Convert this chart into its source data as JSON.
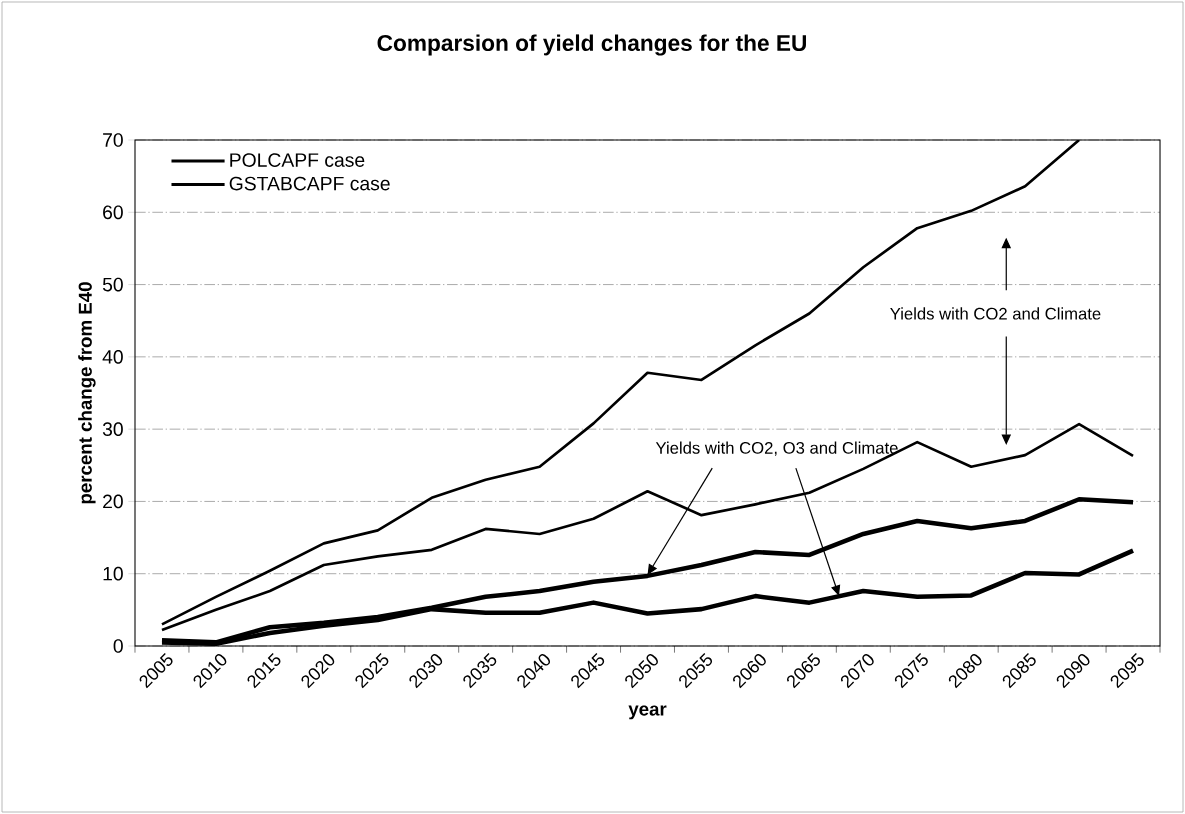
{
  "chart_data": {
    "type": "line",
    "title": "Comparsion of yield changes for the EU",
    "xlabel": "year",
    "ylabel": "percent change from E40",
    "categories": [
      "2005",
      "2010",
      "2015",
      "2020",
      "2025",
      "2030",
      "2035",
      "2040",
      "2045",
      "2050",
      "2055",
      "2060",
      "2065",
      "2070",
      "2075",
      "2080",
      "2085",
      "2090",
      "2095"
    ],
    "series": [
      {
        "name": "POLCAPF case",
        "color": "#000000",
        "values": [
          3.0,
          6.8,
          10.4,
          14.2,
          16.0,
          20.5,
          23.0,
          24.8,
          30.8,
          37.8,
          36.8,
          41.6,
          46.0,
          52.4,
          57.8,
          60.2,
          63.6,
          70,
          null
        ]
      },
      {
        "name": "GSTABCAPF case",
        "color": "#000000",
        "values": [
          2.2,
          5.0,
          7.6,
          11.2,
          12.4,
          13.3,
          16.2,
          15.5,
          17.6,
          21.4,
          18.1,
          19.6,
          21.2,
          24.5,
          28.2,
          24.8,
          26.4,
          30.7,
          26.3
        ]
      },
      {
        "color": "#000000",
        "values": [
          0.8,
          0.5,
          2.6,
          3.2,
          4.0,
          5.3,
          6.8,
          7.6,
          8.9,
          9.7,
          11.2,
          13.0,
          12.6,
          15.5,
          17.3,
          16.3,
          17.3,
          20.3,
          19.9
        ]
      },
      {
        "color": "#000000",
        "values": [
          0.5,
          0.3,
          1.8,
          2.8,
          3.6,
          5.1,
          4.6,
          4.6,
          6.0,
          4.5,
          5.1,
          6.9,
          6.0,
          7.6,
          6.8,
          7.0,
          10.1,
          9.9,
          13.2
        ]
      }
    ],
    "ylim": [
      0,
      70
    ],
    "yticks": [
      0,
      10,
      20,
      30,
      40,
      50,
      60,
      70
    ],
    "grid": "y",
    "legend": "top left",
    "marker": "none",
    "line_style": "solid",
    "annotations": [
      "Yields with CO2 and Climate",
      "Yields with CO2, O3 and Climate"
    ]
  }
}
